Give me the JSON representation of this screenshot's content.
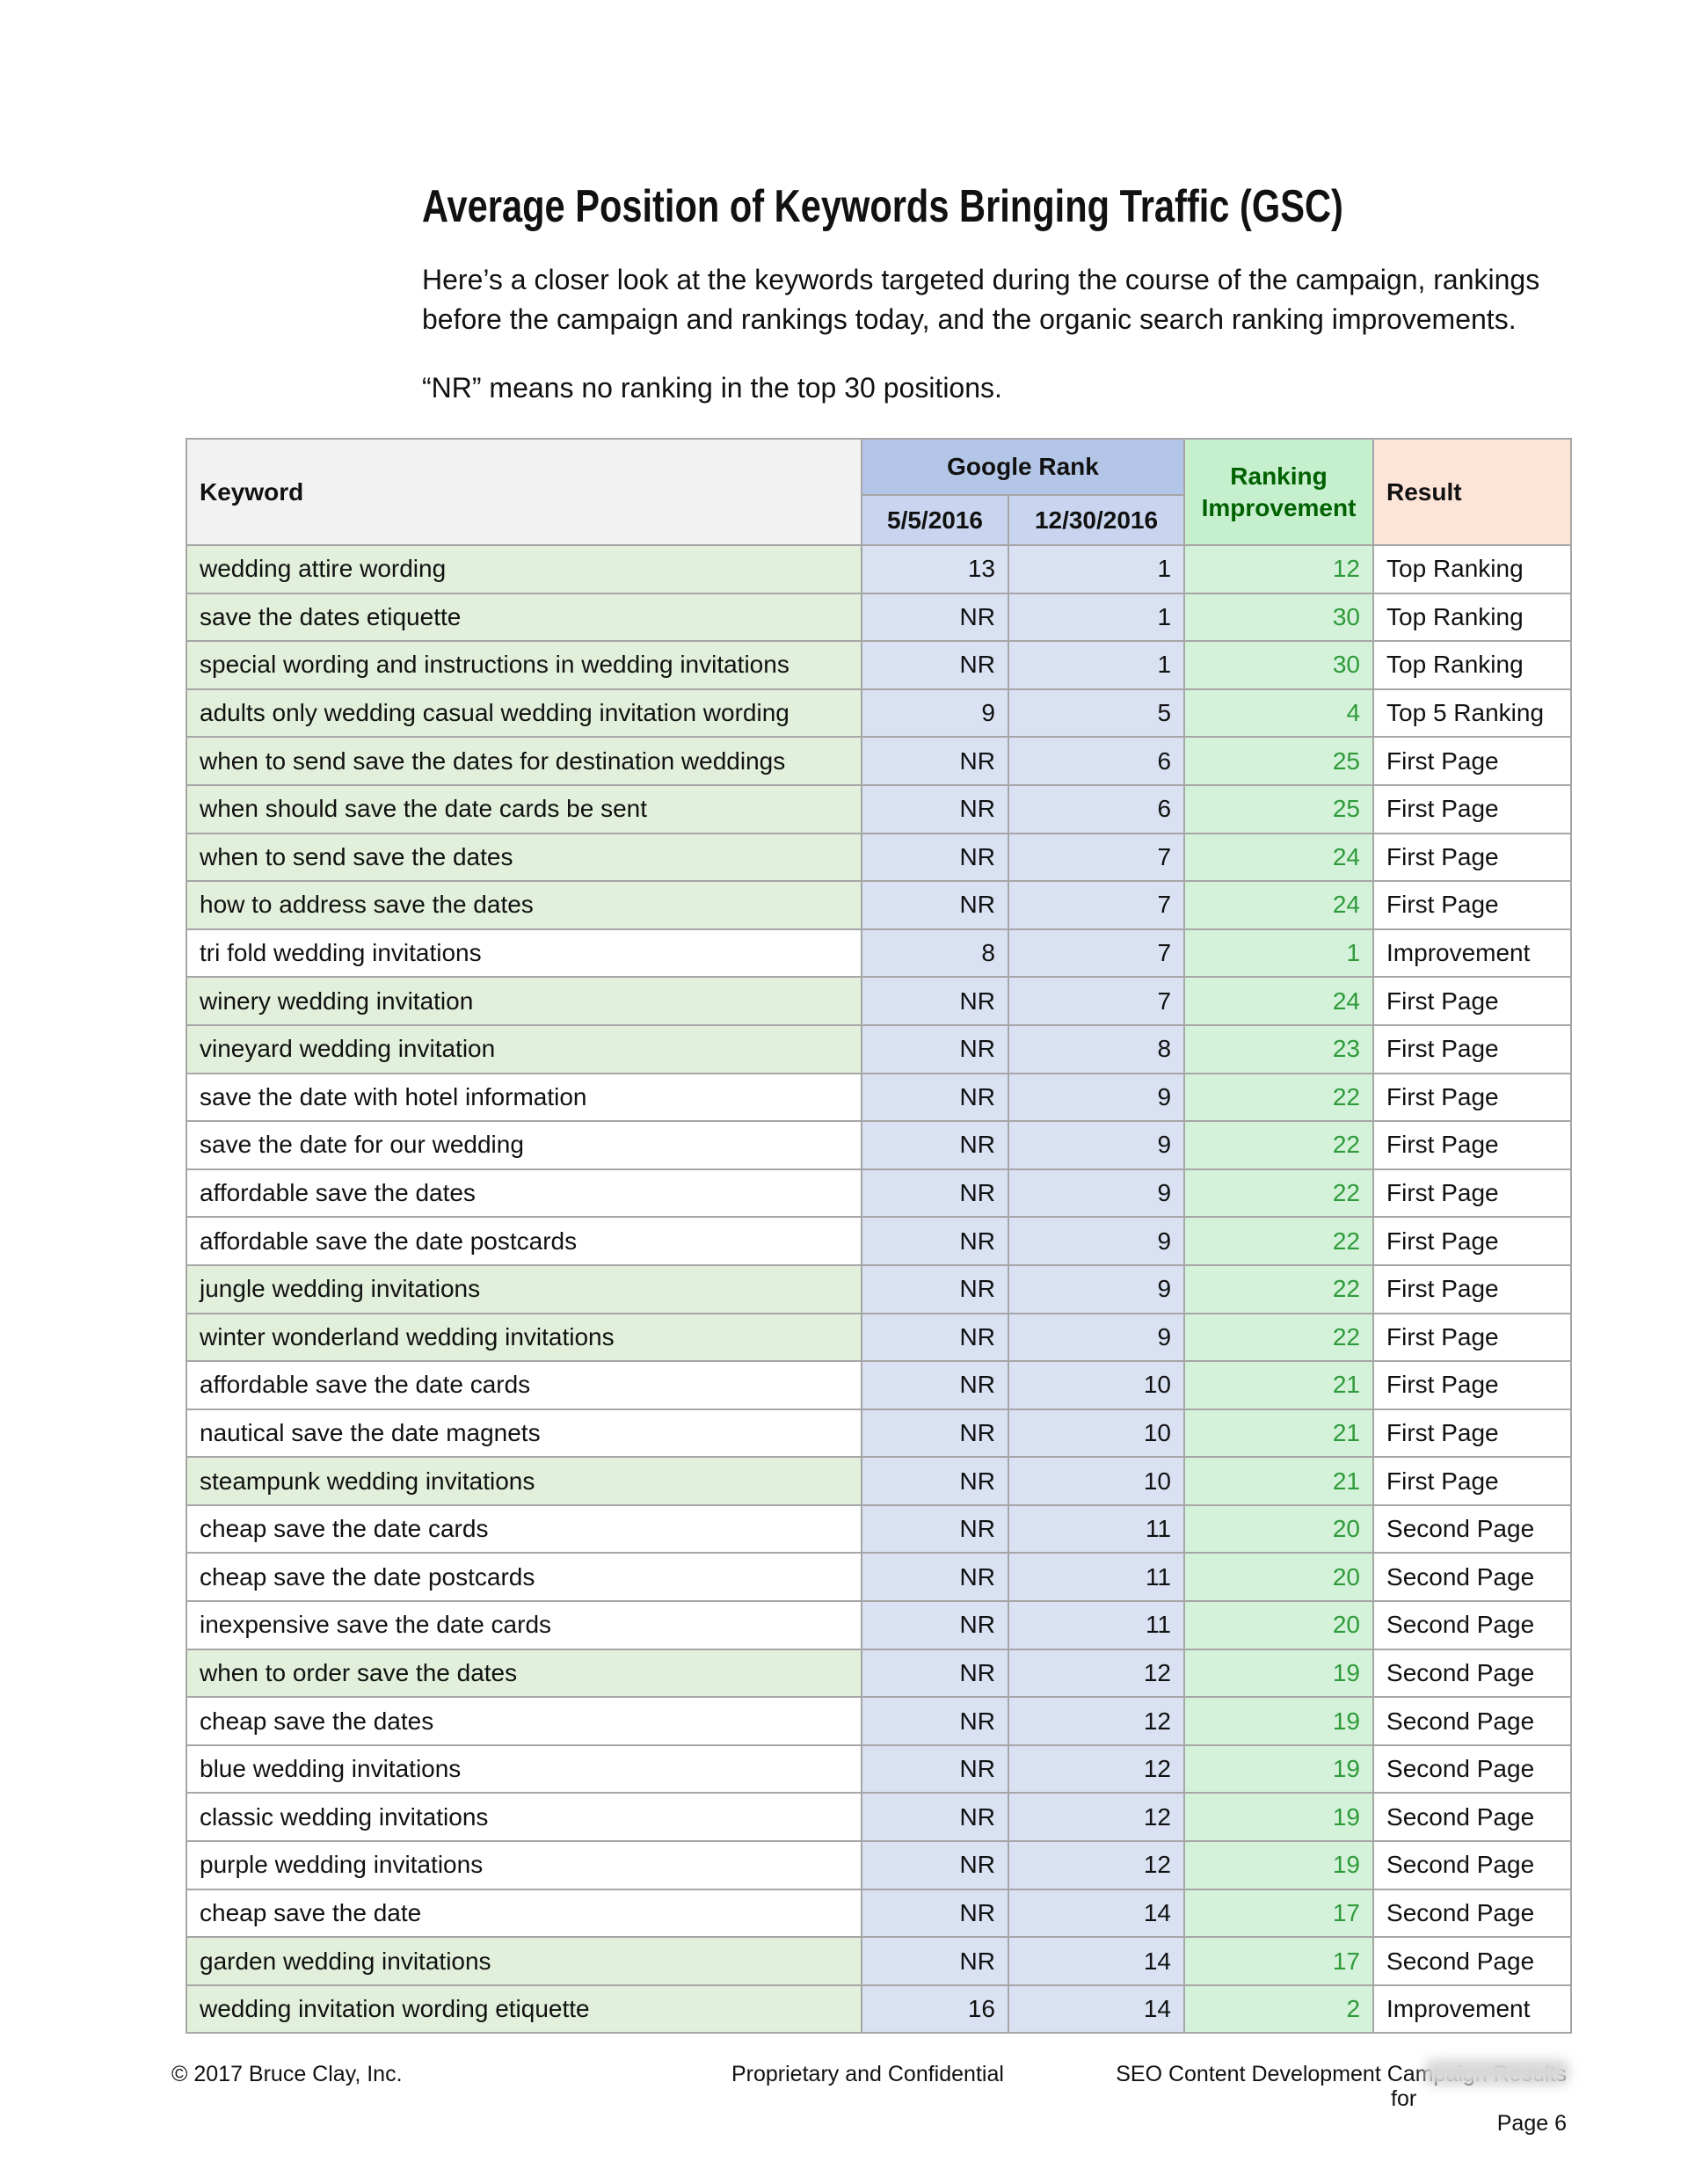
{
  "header": {
    "title": "Average Position of Keywords Bringing Traffic (GSC)",
    "intro": "Here’s a closer look at the keywords targeted during the course of the campaign, rankings before the campaign and rankings today, and the organic search ranking improvements.",
    "note": "“NR” means no ranking in the top 30 positions."
  },
  "table": {
    "columns": {
      "keyword": "Keyword",
      "google_rank": "Google Rank",
      "before": "5/5/2016",
      "after": "12/30/2016",
      "improvement": "Ranking Improvement",
      "result": "Result"
    },
    "rows": [
      {
        "keyword": "wedding attire wording",
        "before": 13,
        "after": 1,
        "improvement": 12,
        "result": "Top Ranking",
        "highlight": true
      },
      {
        "keyword": "save the dates etiquette",
        "before": "NR",
        "after": 1,
        "improvement": 30,
        "result": "Top Ranking",
        "highlight": true
      },
      {
        "keyword": "special wording and instructions in wedding invitations",
        "before": "NR",
        "after": 1,
        "improvement": 30,
        "result": "Top Ranking",
        "highlight": true
      },
      {
        "keyword": "adults only wedding casual wedding invitation wording",
        "before": 9,
        "after": 5,
        "improvement": 4,
        "result": "Top 5 Ranking",
        "highlight": true
      },
      {
        "keyword": "when to send save the dates for destination weddings",
        "before": "NR",
        "after": 6,
        "improvement": 25,
        "result": "First Page",
        "highlight": true
      },
      {
        "keyword": "when should save the date cards be sent",
        "before": "NR",
        "after": 6,
        "improvement": 25,
        "result": "First Page",
        "highlight": true
      },
      {
        "keyword": "when to send save the dates",
        "before": "NR",
        "after": 7,
        "improvement": 24,
        "result": "First Page",
        "highlight": true
      },
      {
        "keyword": "how to address save the dates",
        "before": "NR",
        "after": 7,
        "improvement": 24,
        "result": "First Page",
        "highlight": true
      },
      {
        "keyword": "tri fold wedding invitations",
        "before": 8,
        "after": 7,
        "improvement": 1,
        "result": "Improvement",
        "highlight": false
      },
      {
        "keyword": "winery wedding invitation",
        "before": "NR",
        "after": 7,
        "improvement": 24,
        "result": "First Page",
        "highlight": true
      },
      {
        "keyword": "vineyard wedding invitation",
        "before": "NR",
        "after": 8,
        "improvement": 23,
        "result": "First Page",
        "highlight": true
      },
      {
        "keyword": "save the date with hotel information",
        "before": "NR",
        "after": 9,
        "improvement": 22,
        "result": "First Page",
        "highlight": false
      },
      {
        "keyword": "save the date for our wedding",
        "before": "NR",
        "after": 9,
        "improvement": 22,
        "result": "First Page",
        "highlight": false
      },
      {
        "keyword": "affordable save the dates",
        "before": "NR",
        "after": 9,
        "improvement": 22,
        "result": "First Page",
        "highlight": false
      },
      {
        "keyword": "affordable save the date postcards",
        "before": "NR",
        "after": 9,
        "improvement": 22,
        "result": "First Page",
        "highlight": false
      },
      {
        "keyword": "jungle wedding invitations",
        "before": "NR",
        "after": 9,
        "improvement": 22,
        "result": "First Page",
        "highlight": true
      },
      {
        "keyword": "winter wonderland wedding invitations",
        "before": "NR",
        "after": 9,
        "improvement": 22,
        "result": "First Page",
        "highlight": true
      },
      {
        "keyword": "affordable save the date cards",
        "before": "NR",
        "after": 10,
        "improvement": 21,
        "result": "First Page",
        "highlight": false
      },
      {
        "keyword": "nautical save the date magnets",
        "before": "NR",
        "after": 10,
        "improvement": 21,
        "result": "First Page",
        "highlight": false
      },
      {
        "keyword": "steampunk wedding invitations",
        "before": "NR",
        "after": 10,
        "improvement": 21,
        "result": "First Page",
        "highlight": true
      },
      {
        "keyword": "cheap save the date cards",
        "before": "NR",
        "after": 11,
        "improvement": 20,
        "result": "Second Page",
        "highlight": false
      },
      {
        "keyword": "cheap save the date postcards",
        "before": "NR",
        "after": 11,
        "improvement": 20,
        "result": "Second Page",
        "highlight": false
      },
      {
        "keyword": "inexpensive save the date cards",
        "before": "NR",
        "after": 11,
        "improvement": 20,
        "result": "Second Page",
        "highlight": false
      },
      {
        "keyword": "when to order save the dates",
        "before": "NR",
        "after": 12,
        "improvement": 19,
        "result": "Second Page",
        "highlight": true
      },
      {
        "keyword": "cheap save the dates",
        "before": "NR",
        "after": 12,
        "improvement": 19,
        "result": "Second Page",
        "highlight": false
      },
      {
        "keyword": "blue wedding invitations",
        "before": "NR",
        "after": 12,
        "improvement": 19,
        "result": "Second Page",
        "highlight": false
      },
      {
        "keyword": "classic wedding invitations",
        "before": "NR",
        "after": 12,
        "improvement": 19,
        "result": "Second Page",
        "highlight": false
      },
      {
        "keyword": "purple wedding invitations",
        "before": "NR",
        "after": 12,
        "improvement": 19,
        "result": "Second Page",
        "highlight": false
      },
      {
        "keyword": "cheap save the date",
        "before": "NR",
        "after": 14,
        "improvement": 17,
        "result": "Second Page",
        "highlight": false
      },
      {
        "keyword": "garden wedding invitations",
        "before": "NR",
        "after": 14,
        "improvement": 17,
        "result": "Second Page",
        "highlight": true
      },
      {
        "keyword": "wedding invitation wording etiquette",
        "before": 16,
        "after": 14,
        "improvement": 2,
        "result": "Improvement",
        "highlight": true
      }
    ]
  },
  "footer": {
    "copyright": "© 2017 Bruce Clay, Inc.",
    "confidential": "Proprietary and Confidential",
    "report": "SEO Content Development Campaign Results",
    "for": "for",
    "page": "Page 6"
  }
}
